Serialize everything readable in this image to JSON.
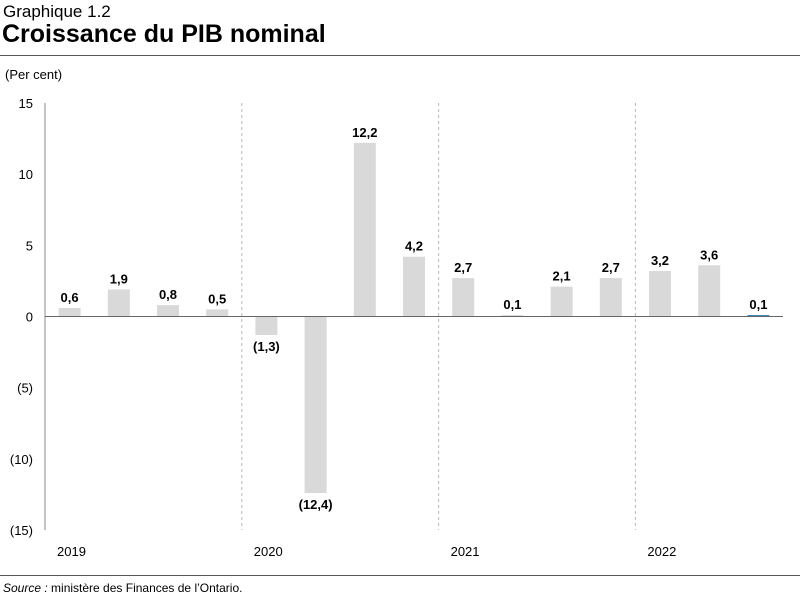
{
  "header": {
    "label": "Graphique 1.2",
    "title": "Croissance du PIB nominal"
  },
  "unit_label": "(Per cent)",
  "source": {
    "prefix": "Source :",
    "text": " ministère des Finances de l’Ontario."
  },
  "chart_data": {
    "type": "bar",
    "title": "Croissance du PIB nominal",
    "ylabel": "(Per cent)",
    "ylim": [
      -15,
      15
    ],
    "yticks": [
      15,
      10,
      5,
      0,
      -5,
      -10,
      -15
    ],
    "ytick_labels": [
      "15",
      "10",
      "5",
      "0",
      "(5)",
      "(10)",
      "(15)"
    ],
    "year_labels": [
      "2019",
      "2020",
      "2021",
      "2022"
    ],
    "bars_per_year": 4,
    "values": [
      0.6,
      1.9,
      0.8,
      0.5,
      -1.3,
      -12.4,
      12.2,
      4.2,
      2.7,
      0.1,
      2.1,
      2.7,
      3.2,
      3.6,
      0.1
    ],
    "labels": [
      "0,6",
      "1,9",
      "0,8",
      "0,5",
      "(1,3)",
      "(12,4)",
      "12,2",
      "4,2",
      "2,7",
      "0,1",
      "2,1",
      "2,7",
      "3,2",
      "3,6",
      "0,1"
    ],
    "bar_color": "#d9d9d9",
    "highlight_color": "#2e7fb8",
    "highlight_index": 14,
    "grid": false
  }
}
